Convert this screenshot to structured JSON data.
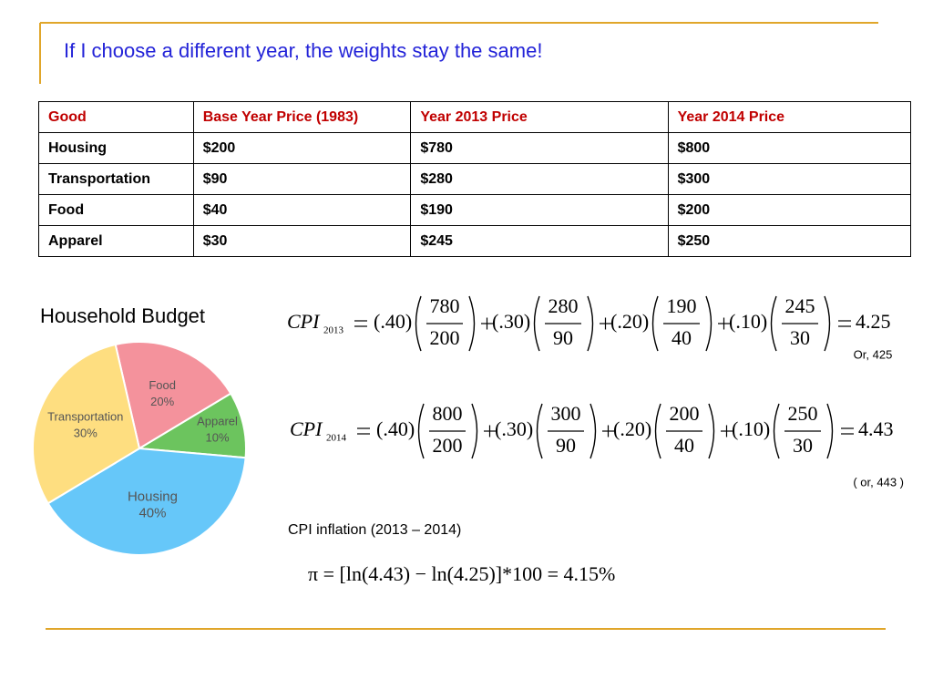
{
  "title": "If I choose a different year, the weights stay the same!",
  "table": {
    "header": [
      "Good",
      "Base Year Price (1983)",
      "Year 2013 Price",
      "Year 2014 Price"
    ],
    "rows": [
      [
        "Housing",
        "$200",
        "$780",
        "$800"
      ],
      [
        "Transportation",
        "$90",
        "$280",
        "$300"
      ],
      [
        "Food",
        "$40",
        "$190",
        "$200"
      ],
      [
        "Apparel",
        "$30",
        "$245",
        "$250"
      ]
    ]
  },
  "chart_data": {
    "type": "pie",
    "title": "Household Budget",
    "categories": [
      "Food",
      "Apparel",
      "Housing",
      "Transportation"
    ],
    "values": [
      20,
      10,
      40,
      30
    ],
    "value_labels": [
      "20%",
      "10%",
      "40%",
      "30%"
    ],
    "colors": [
      "#f4929c",
      "#6cc45e",
      "#66c7f9",
      "#fede80"
    ]
  },
  "equations": [
    {
      "lhs": "CPI",
      "subscript": "2013",
      "terms": [
        {
          "weight": "(.40)",
          "numerator": "780",
          "denominator": "200"
        },
        {
          "weight": "(.30)",
          "numerator": "280",
          "denominator": "90"
        },
        {
          "weight": "(.20)",
          "numerator": "190",
          "denominator": "40"
        },
        {
          "weight": "(.10)",
          "numerator": "245",
          "denominator": "30"
        }
      ],
      "result": "4.25",
      "note": "Or, 425"
    },
    {
      "lhs": "CPI",
      "subscript": "2014",
      "terms": [
        {
          "weight": "(.40)",
          "numerator": "800",
          "denominator": "200"
        },
        {
          "weight": "(.30)",
          "numerator": "300",
          "denominator": "90"
        },
        {
          "weight": "(.20)",
          "numerator": "200",
          "denominator": "40"
        },
        {
          "weight": "(.10)",
          "numerator": "250",
          "denominator": "30"
        }
      ],
      "result": "4.43",
      "note": "( or, 443 )"
    }
  ],
  "inflation": {
    "label": "CPI inflation (2013 – 2014)",
    "formula": "π = [ln(4.43) − ln(4.25)]*100 = 4.15%"
  }
}
